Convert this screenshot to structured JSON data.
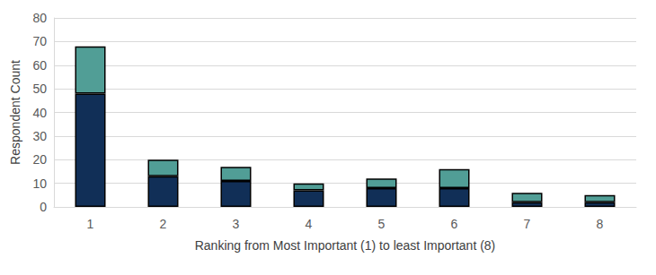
{
  "chart_data": {
    "type": "bar",
    "x_label": "Ranking from Most Important (1) to least Important (8)",
    "y_label": "Respondent Count",
    "categories": [
      "1",
      "2",
      "3",
      "4",
      "5",
      "6",
      "7",
      "8"
    ],
    "series": [
      {
        "color": "#112f57",
        "values": [
          48,
          13,
          11,
          7,
          8,
          8,
          2,
          2
        ]
      },
      {
        "color": "#519e96",
        "values": [
          20,
          7,
          6,
          3,
          4,
          8,
          4,
          3
        ]
      }
    ],
    "stacked": true,
    "ylim": [
      0,
      80
    ],
    "yticks": [
      0,
      10,
      20,
      30,
      40,
      50,
      60,
      70,
      80
    ],
    "grid": true
  }
}
